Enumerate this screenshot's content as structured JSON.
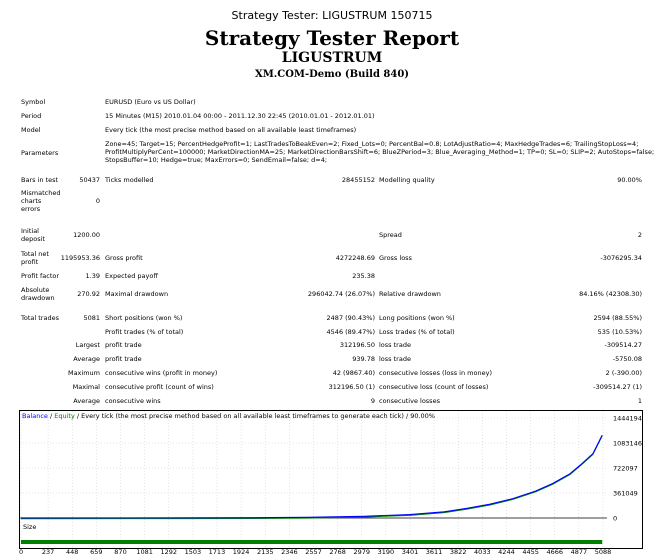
{
  "window_title": "Strategy Tester: LIGUSTRUM 150715",
  "report_title": "Strategy Tester Report",
  "expert_name": "LIGUSTRUM",
  "server": "XM.COM-Demo (Build 840)",
  "info": {
    "symbol_label": "Symbol",
    "symbol_value": "EURUSD (Euro vs US Dollar)",
    "period_label": "Period",
    "period_value": "15 Minutes (M15) 2010.01.04 00:00 - 2011.12.30 22:45 (2010.01.01 - 2012.01.01)",
    "model_label": "Model",
    "model_value": "Every tick (the most precise method based on all available least timeframes)",
    "parameters_label": "Parameters",
    "parameters_line1": "Zone=45; Target=15; PercentHedgeProfit=1; LastTradesToBeakEven=2; Fixed_Lots=0; PercentBal=0.8; LotAdjustRatio=4; MaxHedgeTrades=6; TrailingStopLoss=4;",
    "parameters_line2": "ProfitMultiplyPerCent=100000; MarketDirectionMA=25; MarketDirectionBarsShift=6; BlueZPeriod=3; Blue_Averaging_Method=1; TP=0; SL=0; SLIP=2; AutoStops=false;",
    "parameters_line3": "StopsBuffer=10; Hedge=true; MaxErrors=0; SendEmail=false; d=4;"
  },
  "stats": {
    "bars_label": "Bars in test",
    "bars_value": "50437",
    "ticks_label": "Ticks modelled",
    "ticks_value": "28455152",
    "quality_label": "Modelling quality",
    "quality_value": "90.00%",
    "mismatched_label_1": "Mismatched",
    "mismatched_label_2": "charts",
    "mismatched_label_3": "errors",
    "mismatched_value": "0",
    "deposit_label_1": "Initial",
    "deposit_label_2": "deposit",
    "deposit_value": "1200.00",
    "spread_label": "Spread",
    "spread_value": "2",
    "netprofit_label_1": "Total net",
    "netprofit_label_2": "profit",
    "netprofit_value": "1195953.36",
    "grossprofit_label": "Gross profit",
    "grossprofit_value": "4272248.69",
    "grossloss_label": "Gross loss",
    "grossloss_value": "-3076295.34",
    "pf_label": "Profit factor",
    "pf_value": "1.39",
    "payoff_label": "Expected payoff",
    "payoff_value": "235.38",
    "absdd_label_1": "Absolute",
    "absdd_label_2": "drawdown",
    "absdd_value": "270.92",
    "maxdd_label": "Maximal drawdown",
    "maxdd_value": "296042.74 (26.07%)",
    "reldd_label": "Relative drawdown",
    "reldd_value": "84.16% (42308.30)",
    "trades_label": "Total trades",
    "trades_value": "5081",
    "short_label": "Short positions (won %)",
    "short_value": "2487 (90.43%)",
    "long_label": "Long positions (won %)",
    "long_value": "2594 (88.55%)",
    "profit_trades_label": "Profit trades (% of total)",
    "profit_trades_value": "4546 (89.47%)",
    "loss_trades_label": "Loss trades (% of total)",
    "loss_trades_value": "535 (10.53%)",
    "largest_label": "Largest",
    "largest_profit_label": "profit trade",
    "largest_profit_value": "312196.50",
    "largest_loss_label": "loss trade",
    "largest_loss_value": "-309514.27",
    "average_label": "Average",
    "average_profit_label": "profit trade",
    "average_profit_value": "939.78",
    "average_loss_label": "loss trade",
    "average_loss_value": "-5750.08",
    "maximum_label": "Maximum",
    "max_wins_label": "consecutive wins (profit in money)",
    "max_wins_value": "42 (9867.40)",
    "max_losses_label": "consecutive losses (loss in money)",
    "max_losses_value": "2 (-390.00)",
    "maximal_label": "Maximal",
    "maximal_profit_label": "consecutive profit (count of wins)",
    "maximal_profit_value": "312196.50 (1)",
    "maximal_loss_label": "consecutive loss (count of losses)",
    "maximal_loss_value": "-309514.27 (1)",
    "average2_label": "Average",
    "avg_wins_label": "consecutive wins",
    "avg_wins_value": "9",
    "avg_losses_label": "consecutive losses",
    "avg_losses_value": "1"
  },
  "chart_data": {
    "type": "line",
    "legend_balance": "Balance",
    "legend_sep1": " / ",
    "legend_equity": "Equity",
    "legend_rest": " / Every tick (the most precise method based on all available least timeframes to generate each tick) / 90.00%",
    "size_label": "Size",
    "y_ticks": [
      "1444194",
      "1083146",
      "722097",
      "361049",
      "0"
    ],
    "x_ticks": [
      "0",
      "237",
      "448",
      "659",
      "870",
      "1081",
      "1292",
      "1503",
      "1713",
      "1924",
      "2135",
      "2346",
      "2557",
      "2768",
      "2979",
      "3190",
      "3401",
      "3611",
      "3822",
      "4033",
      "4244",
      "4455",
      "4666",
      "4877",
      "5088"
    ],
    "xlim": [
      0,
      5088
    ],
    "ylim": [
      0,
      1444194
    ],
    "balance_series": [
      [
        0,
        1200
      ],
      [
        1500,
        2000
      ],
      [
        2000,
        4000
      ],
      [
        2500,
        10000
      ],
      [
        3000,
        25000
      ],
      [
        3400,
        50000
      ],
      [
        3700,
        90000
      ],
      [
        3900,
        140000
      ],
      [
        4100,
        200000
      ],
      [
        4300,
        280000
      ],
      [
        4500,
        390000
      ],
      [
        4650,
        500000
      ],
      [
        4800,
        640000
      ],
      [
        4900,
        780000
      ],
      [
        5000,
        930000
      ],
      [
        5081,
        1197153
      ]
    ],
    "colors": {
      "balance": "#0000ff",
      "equity": "#008000",
      "grid": "#c8c8c8"
    }
  }
}
